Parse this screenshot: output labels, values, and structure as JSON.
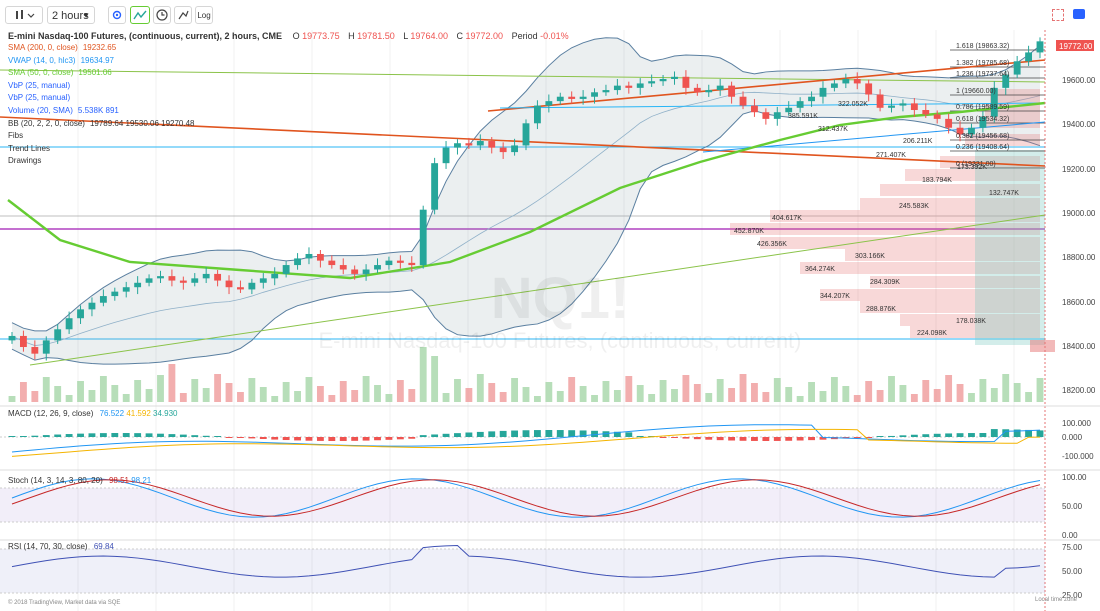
{
  "toolbar": {
    "bars_icon": "bars-icon",
    "interval": "2 hours",
    "settings_icon": "gear-icon",
    "buttons": [
      "compare-icon",
      "clock-icon",
      "undo-icon",
      "log"
    ],
    "log_label": "Log"
  },
  "header": {
    "title": "E-mini Nasdaq-100 Futures, (continuous, current), 2 hours, CME",
    "open_label": "O",
    "open": "19773.75",
    "high_label": "H",
    "high": "19781.50",
    "low_label": "L",
    "low": "19764.00",
    "close_label": "C",
    "close": "19772.00",
    "period_label": "Period",
    "period": "-0.01%"
  },
  "legend": [
    {
      "label": "SMA (200, 0, close)",
      "value": "19232.65",
      "color": "#e0541e"
    },
    {
      "label": "VWAP (14, 0, hlc3)",
      "value": "19634.97",
      "color": "#2196f3"
    },
    {
      "label": "SMA (50, 0, close)",
      "value": "19501.06",
      "color": "#66cc33"
    },
    {
      "label": "VbP (25, manual)",
      "value": "",
      "color": "#2962ff"
    },
    {
      "label": "VbP (25, manual)",
      "value": "",
      "color": "#2962ff"
    },
    {
      "label": "Volume (20, SMA)",
      "value": "5.538K 891",
      "color": "#2962ff"
    },
    {
      "label": "BB (20, 2, 2, 0, close)",
      "value": "19789.64 19530.06 19270.48",
      "color": "#333333"
    },
    {
      "label": "Fibs",
      "value": "",
      "color": "#333333"
    },
    {
      "label": "Trend Lines",
      "value": "",
      "color": "#333333"
    },
    {
      "label": "Drawings",
      "value": "",
      "color": "#333333"
    }
  ],
  "watermark": {
    "symbol": "NQ1!",
    "name": "E-mini Nasdaq-100 Futures, (continuous, current)"
  },
  "price_axis": {
    "ticks": [
      "19600.00",
      "19400.00",
      "19200.00",
      "19000.00",
      "18800.00",
      "18600.00",
      "18400.00",
      "18200.00"
    ],
    "current": "19772.00"
  },
  "fib": [
    {
      "label": "1.618 (19863.32)"
    },
    {
      "label": "1.382 (19785.68)"
    },
    {
      "label": "1.236 (19737.64)"
    },
    {
      "label": "1 (19660.00)"
    },
    {
      "label": "0.786 (19589.59)"
    },
    {
      "label": "0.618 (19534.32)"
    },
    {
      "label": "0.382 (19456.68)"
    },
    {
      "label": "0.236 (19408.64)"
    },
    {
      "label": "0 (19331.00)"
    }
  ],
  "vbp_labels": [
    "322.052K",
    "385.591K",
    "312.437K",
    "206.211K",
    "271.407K",
    "173.392K",
    "183.794K",
    "132.747K",
    "245.583K",
    "404.617K",
    "452.870K",
    "426.356K",
    "303.166K",
    "364.274K",
    "284.309K",
    "344.207K",
    "288.876K",
    "178.038K",
    "224.098K"
  ],
  "macd": {
    "label": "MACD (12, 26, 9, close)",
    "v1": "76.522",
    "v2": "41.592",
    "v3": "34.930",
    "ticks": [
      "100.000",
      "0.000",
      "-100.000"
    ]
  },
  "stoch": {
    "label": "Stoch (14, 3, 14, 3, 80, 20)",
    "k": "98.51",
    "d": "98.21",
    "ticks": [
      "100.00",
      "50.00",
      "0.00"
    ]
  },
  "rsi": {
    "label": "RSI (14, 70, 30, close)",
    "value": "69.84",
    "ticks": [
      "75.00",
      "50.00",
      "25.00"
    ]
  },
  "footer": {
    "credit": "© 2018 TradingView, Market data via SQE",
    "local_time": "Local time zone"
  },
  "colors": {
    "up": "#26a69a",
    "down": "#ef5350",
    "sma200": "#e0541e",
    "sma50": "#66cc33",
    "vwap": "#2196f3",
    "fib": "#444444",
    "bb": "#5a7fa0"
  },
  "chart_data": {
    "type": "candlestick",
    "symbol": "NQ1!",
    "interval": "2 hours",
    "price_range": [
      18150,
      19950
    ],
    "candles_close": [
      18440,
      18390,
      18360,
      18420,
      18470,
      18520,
      18560,
      18590,
      18620,
      18640,
      18660,
      18680,
      18700,
      18710,
      18690,
      18680,
      18700,
      18720,
      18690,
      18660,
      18650,
      18680,
      18700,
      18720,
      18760,
      18790,
      18810,
      18780,
      18760,
      18740,
      18720,
      18740,
      18760,
      18780,
      18770,
      18760,
      19010,
      19220,
      19290,
      19310,
      19300,
      19320,
      19290,
      19270,
      19300,
      19400,
      19480,
      19500,
      19520,
      19510,
      19520,
      19540,
      19550,
      19570,
      19560,
      19580,
      19590,
      19600,
      19610,
      19560,
      19540,
      19550,
      19570,
      19520,
      19480,
      19450,
      19420,
      19450,
      19470,
      19500,
      19520,
      19560,
      19580,
      19600,
      19580,
      19530,
      19470,
      19480,
      19490,
      19460,
      19440,
      19420,
      19380,
      19350,
      19380,
      19430,
      19560,
      19620,
      19680,
      19720,
      19770
    ]
  }
}
